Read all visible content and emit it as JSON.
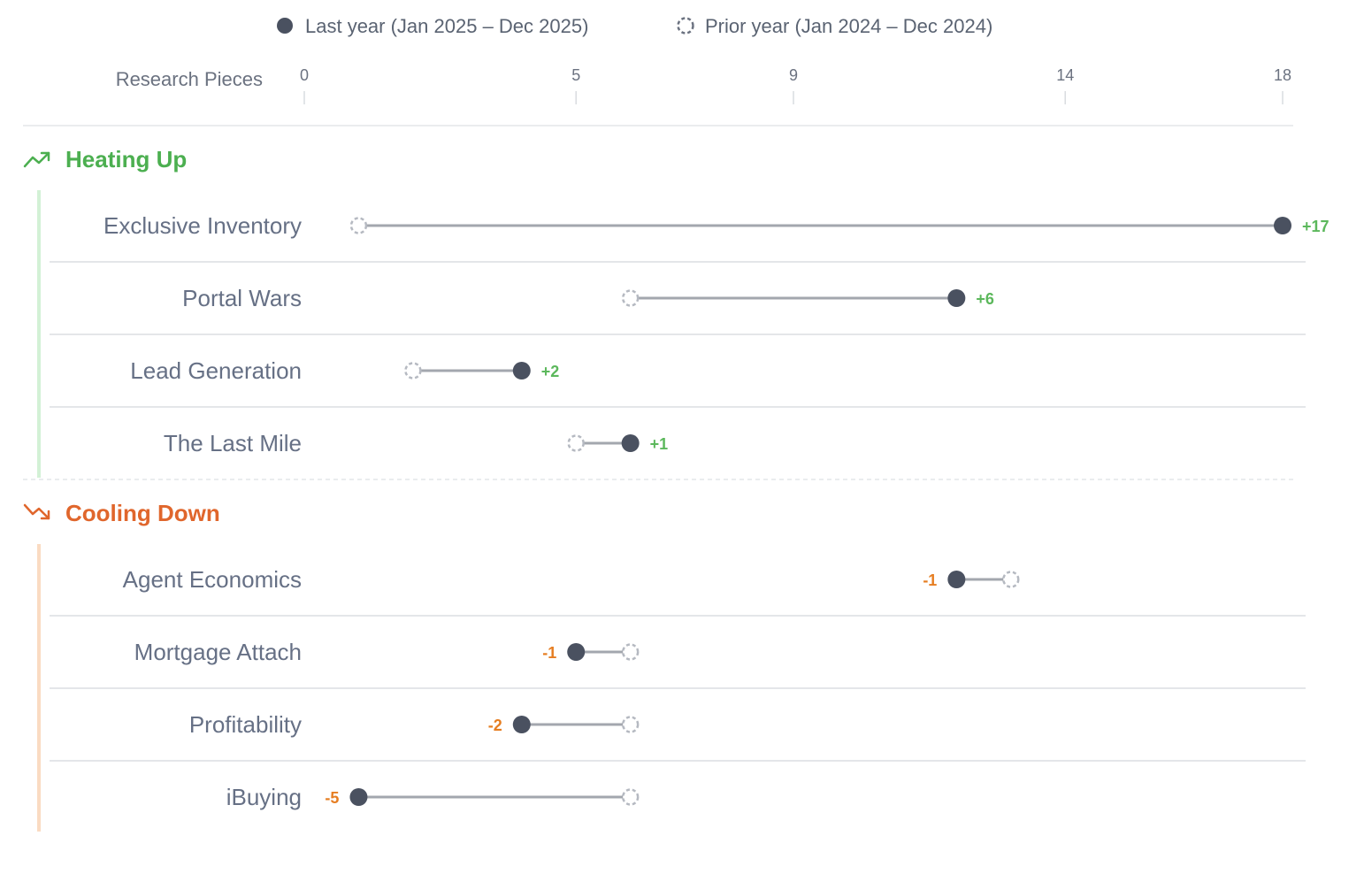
{
  "chart_data": {
    "type": "dumbbell",
    "xlabel": "Research Pieces",
    "xlim": [
      0,
      18
    ],
    "x_ticks": [
      "0",
      "5",
      "9",
      "14",
      "18"
    ],
    "legend": [
      {
        "key": "current",
        "label": "Last year (Jan 2025 – Dec 2025)",
        "marker": "filled"
      },
      {
        "key": "prior",
        "label": "Prior year (Jan 2024 – Dec 2024)",
        "marker": "dashed-hollow"
      }
    ],
    "groups": [
      {
        "title": "Heating Up",
        "icon": "trending-up-icon",
        "color": "#4caf50",
        "bar_color": "#d3f1d6",
        "items": [
          {
            "category": "Exclusive Inventory",
            "prior": 1,
            "current": 18,
            "delta": "+17"
          },
          {
            "category": "Portal Wars",
            "prior": 6,
            "current": 12,
            "delta": "+6"
          },
          {
            "category": "Lead Generation",
            "prior": 2,
            "current": 4,
            "delta": "+2"
          },
          {
            "category": "The Last Mile",
            "prior": 5,
            "current": 6,
            "delta": "+1"
          }
        ]
      },
      {
        "title": "Cooling Down",
        "icon": "trending-down-icon",
        "color": "#e0662c",
        "bar_color": "#fadbc2",
        "items": [
          {
            "category": "Agent Economics",
            "prior": 13,
            "current": 12,
            "delta": "-1"
          },
          {
            "category": "Mortgage Attach",
            "prior": 6,
            "current": 5,
            "delta": "-1"
          },
          {
            "category": "Profitability",
            "prior": 6,
            "current": 4,
            "delta": "-2"
          },
          {
            "category": "iBuying",
            "prior": 6,
            "current": 1,
            "delta": "-5"
          }
        ]
      }
    ],
    "colors": {
      "current_dot": "#4a5160",
      "prior_dot": "#b5b9c1",
      "connector": "#a3a7ae",
      "positive_delta": "#5cb85c",
      "negative_delta": "#e67e22"
    }
  }
}
